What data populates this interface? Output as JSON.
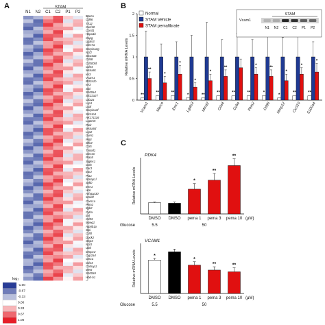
{
  "panels": {
    "a": "A",
    "b": "B",
    "c": "C"
  },
  "heatmap": {
    "group_label": "STAM",
    "columns": [
      "N1",
      "N2",
      "C1",
      "C2",
      "P1",
      "P2"
    ],
    "genes": [
      "Marco",
      "Cd86",
      "Tlr12",
      "Cxcl10",
      "Ccnd1",
      "Hspa1b",
      "Capg",
      "Lgals3",
      "Clec7a",
      "Serpina3g",
      "Ncf2",
      "Slc16a6",
      "Cd48",
      "Cd300ld",
      "Cd44",
      "Ms4a6c",
      "Ier3",
      "Vcam1",
      "Bcl2a1b",
      "Ier3",
      "Slpi",
      "S100a4",
      "Slc22a27",
      "Ctla2a",
      "Lsp1",
      "Lgal",
      "Serpina3f",
      "Slc11a1",
      "AK171116",
      "Laptm5",
      "Plek",
      "Ms4a6d",
      "Lcp2",
      "Gvin1",
      "Pld4",
      "Slfn2",
      "Ccl5",
      "Tm6sf1",
      "Clec4n",
      "Plac8",
      "Siglec1",
      "Ccl6",
      "Ear3",
      "Ear2",
      "Plau",
      "Nckap1l",
      "Sykb",
      "Emr1",
      "Hck",
      "Arhgap30",
      "Mmd2",
      "Coro1a",
      "Pkm2",
      "Itgb2",
      "Cyba",
      "Evl",
      "Cd53",
      "Mpeg1",
      "Atp8b1p",
      "Slpi",
      "Cd5l",
      "Dock2",
      "Gbp3",
      "Ncf4",
      "Ubd",
      "Mmp12",
      "Cyp2a4",
      "Cts1a",
      "Cd14",
      "Cntnap1",
      "Mest",
      "S100a9",
      "Hbb-b1"
    ],
    "legend": {
      "title": "log₂",
      "ticks": [
        "1.00",
        "0.67",
        "0.33",
        "0.00",
        "-0.33",
        "-0.67",
        "-1.00"
      ]
    }
  },
  "chart_data": [
    {
      "type": "bar",
      "legend": [
        "Normal",
        "STAM Vehicle",
        "STAM pemafibrate"
      ],
      "ylabel": "Relative mRNA Levels",
      "ylim": [
        0,
        2
      ],
      "yticks": [
        "0",
        "0.5",
        "1",
        "1.5",
        "2"
      ],
      "categories": [
        "Vcam1",
        "Marco",
        "Emr1",
        "Lgals3",
        "Mmd2",
        "Cd44",
        "Cyba",
        "Pkm2",
        "Cd86",
        "Mmp12",
        "Cxcl10",
        "S100a4"
      ],
      "series": [
        {
          "name": "Normal",
          "values": [
            0.05,
            0.1,
            0.1,
            0.05,
            0.05,
            0.1,
            0.1,
            0.1,
            0.1,
            0.05,
            0.1,
            0.1
          ]
        },
        {
          "name": "STAM Vehicle",
          "values": [
            1,
            1,
            1,
            1,
            1,
            1,
            1,
            1,
            1,
            1,
            1,
            1
          ]
        },
        {
          "name": "STAM pemafibrate",
          "values": [
            0.5,
            0.4,
            0.6,
            0.3,
            0.45,
            0.55,
            0.75,
            0.6,
            0.55,
            0.45,
            0.6,
            0.65
          ]
        }
      ],
      "errors": {
        "STAM Vehicle": [
          0.6,
          0.3,
          0.35,
          0.5,
          0.8,
          0.4,
          0.55,
          0.4,
          0.6,
          0.45,
          0.5,
          0.35
        ],
        "STAM pemafibrate": [
          0.15,
          0.15,
          0.2,
          0.1,
          0.15,
          0.15,
          0.2,
          0.15,
          0.15,
          0.15,
          0.15,
          0.2
        ]
      },
      "sig_normal": [
        "**",
        "**",
        "**",
        "*",
        "**",
        "**",
        "**",
        "**",
        "*",
        "*",
        "**",
        "**"
      ],
      "sig_pema": [
        "**",
        "*",
        "*",
        "*",
        "*",
        "**",
        "",
        "*",
        "**",
        "*",
        "*",
        "*"
      ],
      "inset": {
        "group_label": "STAM",
        "lanes": [
          "N1",
          "N2",
          "C1",
          "C2",
          "P1",
          "P2"
        ],
        "row_label": "Vcam1",
        "band_strength": [
          0.15,
          0.2,
          0.9,
          0.85,
          0.6,
          0.55
        ]
      }
    },
    {
      "type": "bar",
      "title": "PDK4",
      "ylabel": "Relative mRNA Levels",
      "ylim": [
        0,
        5
      ],
      "categories": [
        "DMSO",
        "DMSO",
        "pema 1",
        "pema 3",
        "pema 10"
      ],
      "values": [
        1.0,
        0.95,
        2.2,
        3.0,
        4.3
      ],
      "errors": [
        0.05,
        0.1,
        0.5,
        0.6,
        0.6
      ],
      "colors": [
        "#ffffff",
        "#000000",
        "#e01010",
        "#e01010",
        "#e01010"
      ],
      "sig": [
        "",
        "",
        "*",
        "**",
        "**"
      ],
      "unit": "(μM)",
      "glucose_label": "Glucose",
      "glucose_values": [
        "5.5",
        "50"
      ]
    },
    {
      "type": "bar",
      "title": "VCAM1",
      "ylabel": "Relative mRNA Levels",
      "ylim": [
        0,
        1.5
      ],
      "categories": [
        "DMSO",
        "DMSO",
        "pema 1",
        "pema 3",
        "pema 10"
      ],
      "values": [
        1.0,
        1.25,
        0.85,
        0.7,
        0.65
      ],
      "errors": [
        0.05,
        0.08,
        0.1,
        0.1,
        0.12
      ],
      "colors": [
        "#ffffff",
        "#000000",
        "#e01010",
        "#e01010",
        "#e01010"
      ],
      "sig": [
        "*",
        "",
        "*",
        "**",
        "**"
      ],
      "unit": "(μM)",
      "glucose_label": "Glucose",
      "glucose_values": [
        "5.5",
        "50"
      ]
    }
  ]
}
